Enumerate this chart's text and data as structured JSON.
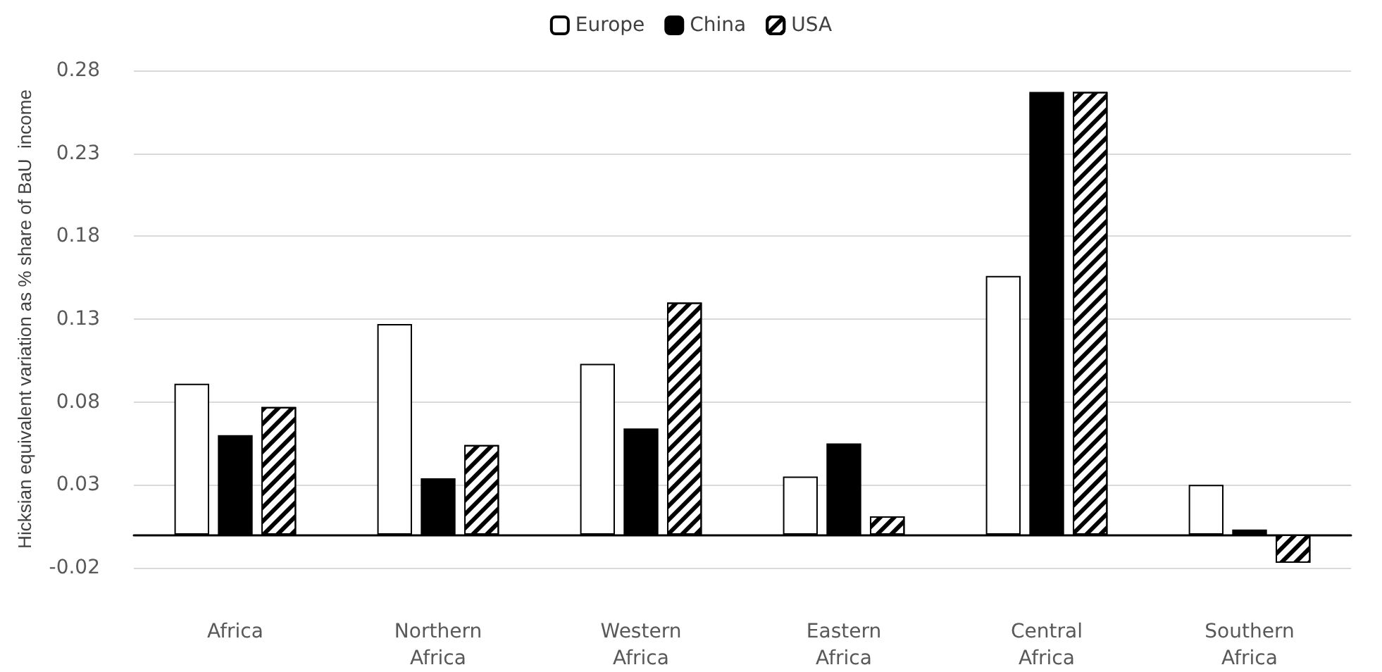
{
  "chart_data": {
    "type": "bar",
    "ylabel": "Hicksian equivalent variation as % share of BaU  income",
    "categories": [
      "Africa",
      "Northern\nAfrica",
      "Western\nAfrica",
      "Eastern\nAfrica",
      "Central\nAfrica",
      "Southern\nAfrica"
    ],
    "series": [
      {
        "name": "Europe",
        "color": "#ffffff",
        "values": [
          0.091,
          0.127,
          0.103,
          0.035,
          0.156,
          0.03
        ]
      },
      {
        "name": "China",
        "color": "#000000",
        "values": [
          0.06,
          0.034,
          0.064,
          0.055,
          0.267,
          0.003
        ]
      },
      {
        "name": "USA",
        "color": "#ffffff",
        "values": [
          0.077,
          0.054,
          0.14,
          0.011,
          0.267,
          -0.017
        ]
      }
    ],
    "ylim": [
      -0.02,
      0.28
    ],
    "yticks": [
      -0.02,
      0.03,
      0.08,
      0.13,
      0.18,
      0.23,
      0.28
    ],
    "grid": "y",
    "legend": "top"
  }
}
